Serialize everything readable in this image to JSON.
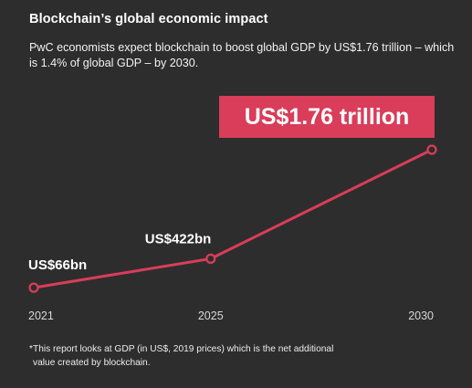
{
  "title": "Blockchain’s global economic impact",
  "subtitle": "PwC economists expect blockchain to boost global GDP by US$1.76 trillion – which is 1.4% of global GDP – by 2030.",
  "headline": "US$1.76 trillion",
  "footnote_line1": "*This report looks at GDP (in US$, 2019 prices) which is the net additional",
  "footnote_line2": "value created by blockchain.",
  "colors": {
    "background": "#2d2d2d",
    "accent": "#d93d59",
    "text": "#ffffff"
  },
  "chart_data": {
    "type": "line",
    "x": [
      2021,
      2025,
      2030
    ],
    "values": [
      66,
      422,
      1760
    ],
    "data_labels": [
      "US$66bn",
      "US$422bn",
      ""
    ],
    "x_tick_labels": [
      "2021",
      "2025",
      "2030"
    ],
    "grid": false,
    "legend": "none"
  }
}
